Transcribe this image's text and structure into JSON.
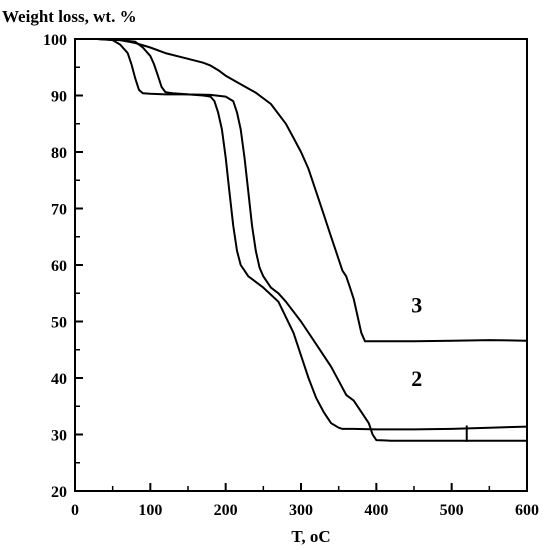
{
  "chart_data": {
    "type": "line",
    "title": "",
    "ylabel": "Weight loss, wt. %",
    "xlabel": "T, ",
    "xlabel_unit": "oC",
    "xlim": [
      0,
      600
    ],
    "ylim": [
      20,
      100
    ],
    "xticks": [
      0,
      100,
      200,
      300,
      400,
      500,
      600
    ],
    "yticks": [
      20,
      30,
      40,
      50,
      60,
      70,
      80,
      90,
      100
    ],
    "grid": false,
    "curve_labels": [
      {
        "text": "3",
        "x": 520,
        "y": 53
      },
      {
        "text": "2",
        "x": 520,
        "y": 40
      }
    ],
    "series": [
      {
        "x": [
          30,
          50,
          60,
          70,
          75,
          80,
          85,
          90,
          100,
          120,
          150,
          170,
          180,
          185,
          190,
          195,
          200,
          205,
          210,
          215,
          220,
          225,
          230,
          240,
          250,
          270,
          290,
          300,
          310,
          320,
          330,
          340,
          350,
          355,
          360,
          370,
          400,
          450,
          500,
          550,
          600
        ],
        "y": [
          100,
          99.8,
          99,
          97.5,
          95.5,
          93,
          91,
          90.4,
          90.3,
          90.2,
          90.2,
          90,
          89.8,
          89,
          87,
          84,
          79,
          73,
          67,
          62.5,
          60,
          59,
          58,
          57,
          56,
          53.5,
          48,
          44,
          40,
          36.5,
          34,
          32,
          31.2,
          31,
          31,
          31,
          30.9,
          30.9,
          31,
          31.2,
          31.4
        ]
      },
      {
        "name": "2",
        "x": [
          30,
          60,
          80,
          90,
          100,
          105,
          110,
          115,
          120,
          125,
          130,
          150,
          180,
          200,
          210,
          215,
          220,
          225,
          230,
          235,
          240,
          245,
          250,
          260,
          270,
          280,
          300,
          320,
          340,
          350,
          360,
          370,
          380,
          390,
          395,
          400,
          420,
          450,
          500,
          550,
          600
        ],
        "y": [
          100,
          99.8,
          99.5,
          98.5,
          97,
          95.5,
          93.5,
          91.5,
          90.6,
          90.5,
          90.4,
          90.2,
          90.1,
          89.8,
          89,
          87,
          84,
          79,
          73,
          67,
          62.5,
          59.5,
          58,
          56,
          55,
          53.5,
          50,
          46,
          42,
          39.5,
          37,
          36,
          34,
          32,
          30,
          29,
          28.9,
          28.9,
          28.9,
          28.9,
          28.9
        ]
      },
      {
        "name": "3",
        "x": [
          30,
          60,
          80,
          100,
          120,
          150,
          170,
          180,
          190,
          200,
          220,
          240,
          260,
          280,
          290,
          300,
          310,
          320,
          330,
          340,
          345,
          350,
          355,
          360,
          365,
          370,
          375,
          380,
          385,
          400,
          450,
          500,
          550,
          600
        ],
        "y": [
          100,
          99.8,
          99.3,
          98.5,
          97.5,
          96.5,
          95.8,
          95.3,
          94.5,
          93.5,
          92,
          90.5,
          88.5,
          85,
          82.5,
          80,
          77,
          73,
          69,
          65,
          63,
          61,
          59,
          58,
          56,
          54,
          51,
          48,
          46.5,
          46.5,
          46.5,
          46.6,
          46.7,
          46.6
        ]
      }
    ]
  }
}
